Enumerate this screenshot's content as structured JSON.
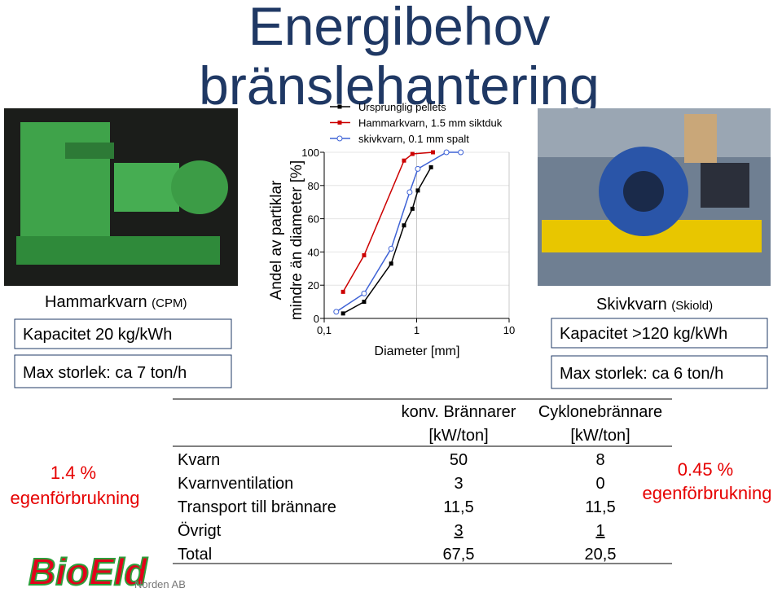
{
  "title": [
    "Energibehov",
    "bränslehantering"
  ],
  "left_panel": {
    "name": "Hammarkvarn",
    "maker": "(CPM)",
    "capacity": "Kapacitet 20 kg/kWh",
    "max_size": "Max storlek: ca 7 ton/h"
  },
  "right_panel": {
    "name": "Skivkvarn",
    "maker": "(Skiold)",
    "capacity": "Kapacitet  >120 kg/kWh",
    "max_size": "Max storlek: ca 6 ton/h"
  },
  "chart_data": {
    "type": "line",
    "ylabel": [
      "Andel av partiklar",
      "mindre än diameter [%]"
    ],
    "xlabel": "Diameter [mm]",
    "xscale": "log",
    "xlim": [
      0.1,
      10
    ],
    "xticks": [
      {
        "value": 0.1,
        "label": "0,1"
      },
      1,
      10
    ],
    "ylim": [
      0,
      100
    ],
    "yticks": [
      0,
      20,
      40,
      60,
      80,
      100
    ],
    "grid": true,
    "series": [
      {
        "name": "Ursprunglig pellets",
        "color": "#000000",
        "marker": "square",
        "x": [
          0.16,
          0.27,
          0.53,
          0.73,
          0.9,
          1.03,
          1.43
        ],
        "values": [
          3,
          10,
          33,
          56,
          66,
          77,
          91
        ]
      },
      {
        "name": "Hammarkvarn, 1.5 mm siktduk",
        "color": "#cc0000",
        "marker": "square",
        "x": [
          0.16,
          0.27,
          0.73,
          0.9,
          1.5
        ],
        "values": [
          16,
          38,
          95,
          99,
          100
        ]
      },
      {
        "name": "skivkvarn, 0.1 mm spalt",
        "color": "#3f63d6",
        "marker": "circle",
        "x": [
          0.135,
          0.27,
          0.53,
          0.84,
          1.03,
          2.1,
          3.0
        ],
        "values": [
          4,
          15,
          42,
          76,
          90,
          100,
          100
        ]
      }
    ]
  },
  "table": {
    "header": [
      [
        "konv. Brännarer",
        "[kW/ton]"
      ],
      [
        "Cyklonebrännare",
        "[kW/ton]"
      ]
    ],
    "rows": [
      [
        "Kvarn",
        "50",
        "8"
      ],
      [
        "Kvarnventilation",
        "3",
        "0"
      ],
      [
        "Transport till  brännare",
        "11,5",
        "11,5"
      ],
      [
        "Övrigt",
        "3",
        "1"
      ],
      [
        "Total",
        "67,5",
        "20,5"
      ]
    ]
  },
  "notes": {
    "left": [
      "1.4 %",
      "egenförbrukning"
    ],
    "right": [
      "0.45 %",
      "egenförbrukning"
    ]
  },
  "logo": {
    "brand": "BioEld",
    "suffix": "Norden AB"
  }
}
